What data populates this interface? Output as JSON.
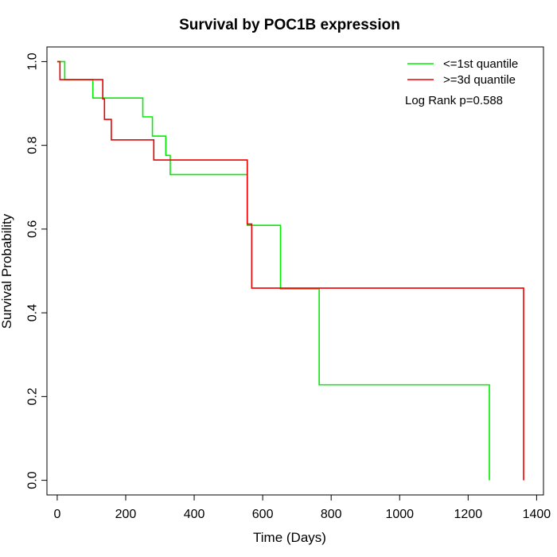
{
  "chart_data": {
    "type": "line",
    "title": "Survival by POC1B expression",
    "xlabel": "Time (Days)",
    "ylabel": "Survival Probability",
    "xlim": [
      -30,
      1420
    ],
    "ylim": [
      -0.035,
      1.035
    ],
    "xticks": [
      "0",
      "200",
      "400",
      "600",
      "800",
      "1000",
      "1200",
      "1400"
    ],
    "xtick_values": [
      0,
      200,
      400,
      600,
      800,
      1000,
      1200,
      1400
    ],
    "yticks": [
      "0.0",
      "0.2",
      "0.4",
      "0.6",
      "0.8",
      "1.0"
    ],
    "ytick_values": [
      0.0,
      0.2,
      0.4,
      0.6,
      0.8,
      1.0
    ],
    "legend_position": "top-right",
    "annotation": "Log Rank p=0.588",
    "grid": false,
    "series": [
      {
        "name": "<=1st quantile",
        "color": "#00ee00",
        "steps": [
          [
            0,
            1.0
          ],
          [
            22,
            0.957
          ],
          [
            104,
            0.913
          ],
          [
            250,
            0.868
          ],
          [
            278,
            0.822
          ],
          [
            317,
            0.776
          ],
          [
            330,
            0.73
          ],
          [
            555,
            0.609
          ],
          [
            652,
            0.457
          ],
          [
            765,
            0.228
          ],
          [
            1262,
            0.0
          ]
        ]
      },
      {
        "name": ">=3d quantile",
        "color": "#ee0000",
        "steps": [
          [
            0,
            1.0
          ],
          [
            8,
            0.957
          ],
          [
            133,
            0.911
          ],
          [
            138,
            0.862
          ],
          [
            158,
            0.813
          ],
          [
            282,
            0.765
          ],
          [
            555,
            0.612
          ],
          [
            568,
            0.459
          ],
          [
            1362,
            0.0
          ]
        ]
      }
    ]
  }
}
